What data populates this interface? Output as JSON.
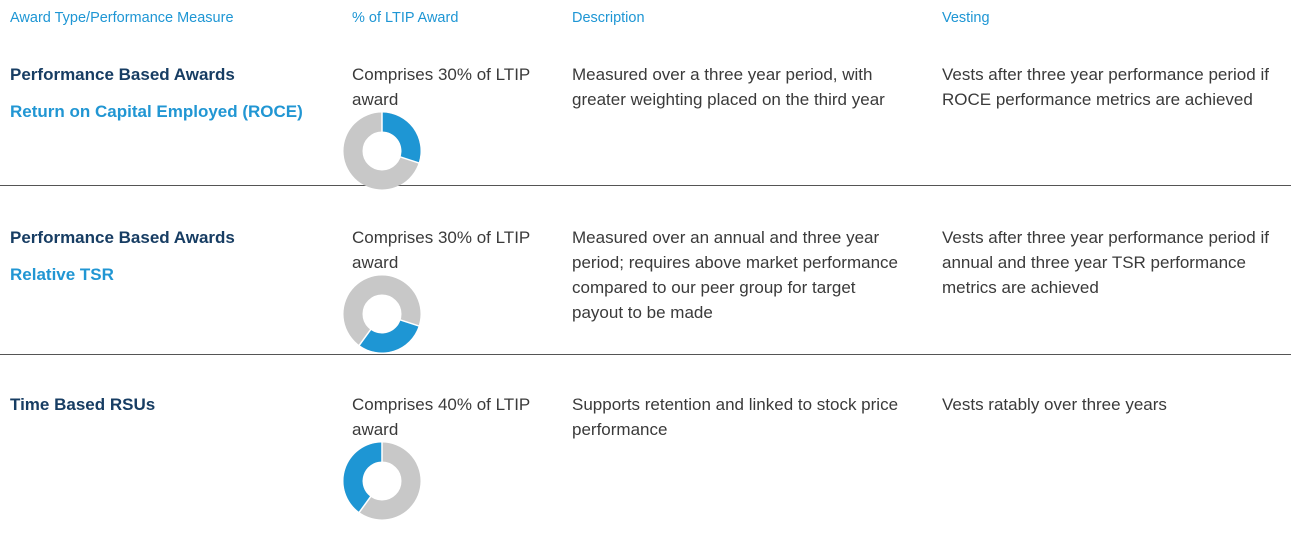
{
  "header": {
    "columns": [
      "Award Type/Performance Measure",
      "% of LTIP Award",
      "Description",
      "Vesting"
    ]
  },
  "table": {
    "rows": [
      {
        "title": "Performance Based Awards",
        "subtitle": "Return on Capital Employed (ROCE)",
        "percent_text": "Comprises 30% of LTIP award",
        "share": 30,
        "description": "Measured over a three year period, with greater weighting placed on the third year",
        "vesting": "Vests after three year performance period if ROCE performance metrics are achieved"
      },
      {
        "title": "Performance Based Awards",
        "subtitle": "Relative TSR",
        "percent_text": "Comprises 30% of LTIP award",
        "share": 30,
        "description": "Measured over an annual and three year period; requires above market performance compared to our peer group for target payout to be made",
        "vesting": "Vests after three year performance period if annual and three year TSR performance metrics are achieved"
      },
      {
        "title": "Time Based RSUs",
        "percent_text": "Comprises 40% of LTIP award",
        "share": 40,
        "description": "Supports retention and linked to stock price performance",
        "vesting": "Vests ratably over three years"
      }
    ]
  }
}
